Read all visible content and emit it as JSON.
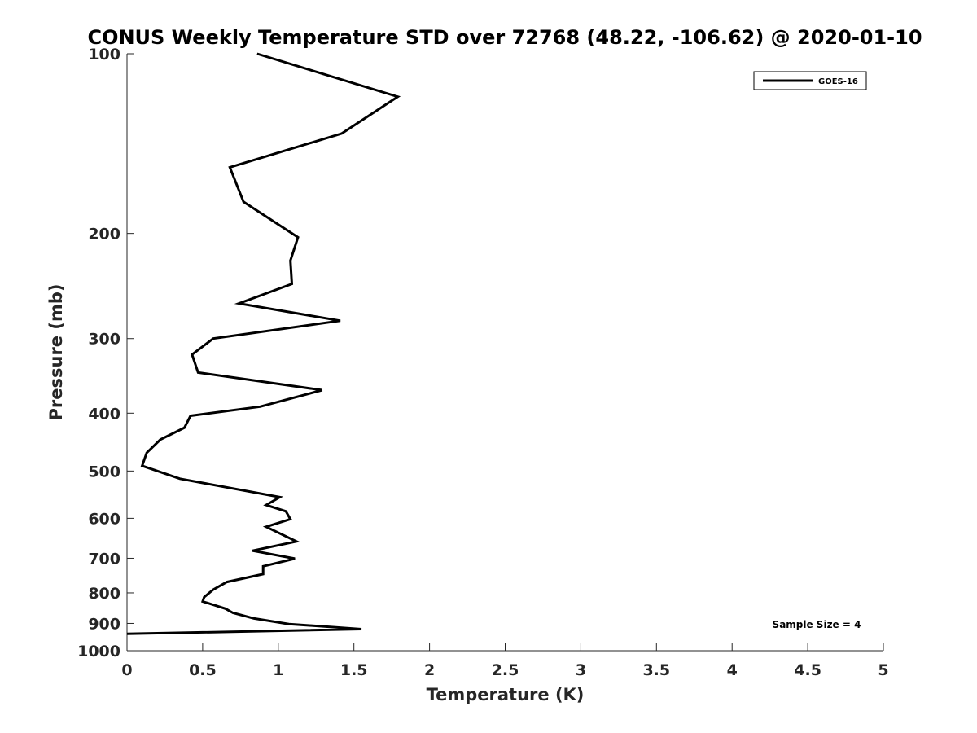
{
  "chart_data": {
    "type": "line",
    "title": "CONUS Weekly Temperature STD over 72768 (48.22, -106.62) @ 2020-01-10",
    "xlabel": "Temperature (K)",
    "ylabel": "Pressure (mb)",
    "xlim": [
      0,
      5
    ],
    "ylim": [
      100,
      1000
    ],
    "y_scale": "log",
    "y_reversed": true,
    "x_ticks": [
      0,
      0.5,
      1,
      1.5,
      2,
      2.5,
      3,
      3.5,
      4,
      4.5,
      5
    ],
    "x_tick_labels": [
      "0",
      "0.5",
      "1",
      "1.5",
      "2",
      "2.5",
      "3",
      "3.5",
      "4",
      "4.5",
      "5"
    ],
    "y_ticks": [
      100,
      200,
      300,
      400,
      500,
      600,
      700,
      800,
      900,
      1000
    ],
    "y_tick_labels": [
      "100",
      "200",
      "300",
      "400",
      "500",
      "600",
      "700",
      "800",
      "900",
      "1000"
    ],
    "grid": false,
    "legend_position": "top-right",
    "series": [
      {
        "name": "GOES-16",
        "color": "#000000",
        "points": [
          [
            0.86,
            100
          ],
          [
            1.79,
            118
          ],
          [
            1.42,
            136
          ],
          [
            0.68,
            155
          ],
          [
            0.77,
            177
          ],
          [
            1.13,
            203
          ],
          [
            1.08,
            222
          ],
          [
            1.09,
            243
          ],
          [
            0.74,
            262
          ],
          [
            1.41,
            280
          ],
          [
            0.57,
            300
          ],
          [
            0.43,
            319
          ],
          [
            0.47,
            342
          ],
          [
            1.29,
            366
          ],
          [
            0.88,
            390
          ],
          [
            0.42,
            404
          ],
          [
            0.38,
            423
          ],
          [
            0.22,
            443
          ],
          [
            0.13,
            466
          ],
          [
            0.1,
            490
          ],
          [
            0.35,
            515
          ],
          [
            1.01,
            553
          ],
          [
            0.92,
            570
          ],
          [
            1.05,
            584
          ],
          [
            1.08,
            602
          ],
          [
            0.92,
            620
          ],
          [
            1.12,
            656
          ],
          [
            0.83,
            680
          ],
          [
            1.11,
            701
          ],
          [
            0.9,
            722
          ],
          [
            0.9,
            744
          ],
          [
            0.66,
            767
          ],
          [
            0.57,
            790
          ],
          [
            0.51,
            813
          ],
          [
            0.5,
            827
          ],
          [
            0.65,
            850
          ],
          [
            0.7,
            864
          ],
          [
            0.84,
            883
          ],
          [
            1.07,
            902
          ],
          [
            1.55,
            920
          ],
          [
            0.0,
            937
          ]
        ]
      }
    ],
    "annotation": "Sample Size = 4"
  }
}
